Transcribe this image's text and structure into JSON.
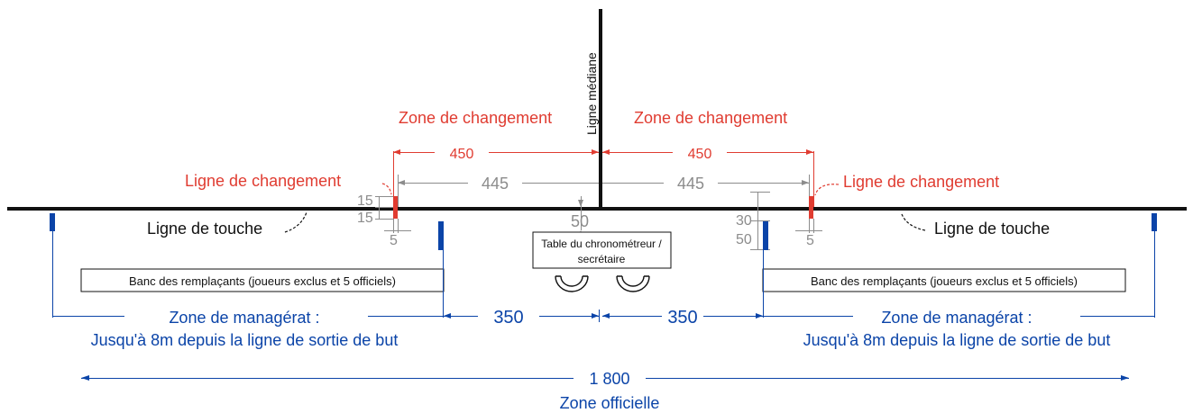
{
  "labels": {
    "ligne_mediane": "Ligne médiane",
    "zone_changement_left": "Zone de changement",
    "zone_changement_right": "Zone de changement",
    "ligne_changement_left": "Ligne de changement",
    "ligne_changement_right": "Ligne de changement",
    "ligne_touche_left": "Ligne de touche",
    "ligne_touche_right": "Ligne de touche",
    "table": "Table du chronométreur / secrétaire",
    "table_line1": "Table du chronométreur /",
    "table_line2": "secrétaire",
    "banc_left": "Banc des remplaçants (joueurs exclus et 5 officiels)",
    "banc_right": "Banc des remplaçants (joueurs exclus et 5 officiels)",
    "zone_managerat_left_1": "Zone de managérat :",
    "zone_managerat_left_2": "Jusqu'à 8m depuis la ligne de sortie de but",
    "zone_managerat_right_1": "Zone de managérat :",
    "zone_managerat_right_2": "Jusqu'à 8m depuis la ligne de sortie de but",
    "zone_officielle": "Zone officielle"
  },
  "dimensions": {
    "changement_left": "450",
    "changement_right": "450",
    "inner_left": "445",
    "inner_right": "445",
    "table_offset": "50",
    "left_15_top": "15",
    "left_15_bottom": "15",
    "left_5": "5",
    "right_30": "30",
    "right_50": "50",
    "right_5": "5",
    "bench_left_350": "350",
    "bench_right_350": "350",
    "total": "1 800"
  },
  "colors": {
    "change_zone": "#e03c31",
    "management": "#0b44a8",
    "dimension_grey": "#8c8c8c",
    "lines": "#111111"
  }
}
